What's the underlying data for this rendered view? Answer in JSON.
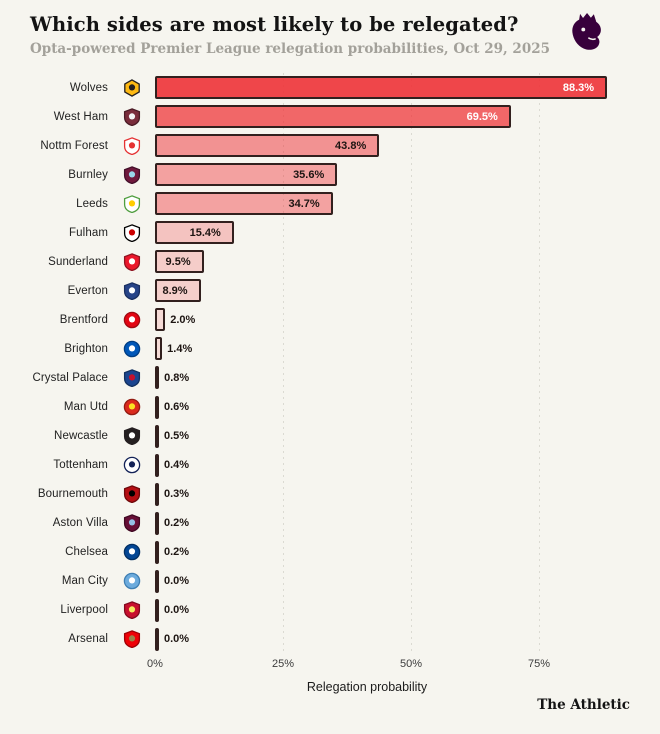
{
  "header": {
    "title": "Which sides are most likely to be relegated?",
    "subtitle": "Opta-powered Premier League relegation probabilities, Oct 29, 2025",
    "logo_color": "#38003c"
  },
  "footer": {
    "brand": "The Athletic"
  },
  "chart_data": {
    "type": "bar",
    "orientation": "horizontal",
    "title": "Which sides are most likely to be relegated?",
    "subtitle": "Opta-powered Premier League relegation probabilities, Oct 29, 2025",
    "xlabel": "Relegation probability",
    "ylabel": "",
    "xlim": [
      0,
      98.6
    ],
    "grid": "dotted-vertical",
    "grid_values": [
      25,
      50,
      75
    ],
    "legend": "none",
    "bar_base_color": "#ee3237",
    "bar_border_color": "#32201e",
    "x_ticks": [
      {
        "label": "0%",
        "value": 0
      },
      {
        "label": "25%",
        "value": 25
      },
      {
        "label": "50%",
        "value": 50
      },
      {
        "label": "75%",
        "value": 75
      }
    ],
    "categories": [
      "Wolves",
      "West Ham",
      "Nottm Forest",
      "Burnley",
      "Leeds",
      "Fulham",
      "Sunderland",
      "Everton",
      "Brentford",
      "Brighton",
      "Crystal Palace",
      "Man Utd",
      "Newcastle",
      "Tottenham",
      "Bournemouth",
      "Aston Villa",
      "Chelsea",
      "Man City",
      "Liverpool",
      "Arsenal"
    ],
    "values": [
      88.3,
      69.5,
      43.8,
      35.6,
      34.7,
      15.4,
      9.5,
      8.9,
      2.0,
      1.4,
      0.8,
      0.6,
      0.5,
      0.4,
      0.3,
      0.2,
      0.2,
      0.0,
      0.0,
      0.0
    ],
    "teams": [
      {
        "name": "Wolves",
        "value": 88.3,
        "label": "88.3%",
        "crest": {
          "shape": "hex",
          "primary": "#FDB913",
          "secondary": "#231F20",
          "stroke": "#231F20"
        }
      },
      {
        "name": "West Ham",
        "value": 69.5,
        "label": "69.5%",
        "crest": {
          "shape": "shield",
          "primary": "#7A2C3B",
          "secondary": "#F3F3F3",
          "stroke": "#4a1b25"
        }
      },
      {
        "name": "Nottm Forest",
        "value": 43.8,
        "label": "43.8%",
        "crest": {
          "shape": "shield",
          "primary": "#FFFFFF",
          "secondary": "#E53233",
          "stroke": "#E53233"
        }
      },
      {
        "name": "Burnley",
        "value": 35.6,
        "label": "35.6%",
        "crest": {
          "shape": "shield",
          "primary": "#70193D",
          "secondary": "#99D6EA",
          "stroke": "#43102a"
        }
      },
      {
        "name": "Leeds",
        "value": 34.7,
        "label": "34.7%",
        "crest": {
          "shape": "shield",
          "primary": "#FFFFFF",
          "secondary": "#FFCD00",
          "stroke": "#4f9e3f"
        }
      },
      {
        "name": "Fulham",
        "value": 15.4,
        "label": "15.4%",
        "crest": {
          "shape": "shield",
          "primary": "#FFFFFF",
          "secondary": "#CC0000",
          "stroke": "#000000"
        }
      },
      {
        "name": "Sunderland",
        "value": 9.5,
        "label": "9.5%",
        "crest": {
          "shape": "shield",
          "primary": "#EB172B",
          "secondary": "#FFFFFF",
          "stroke": "#8f1320"
        }
      },
      {
        "name": "Everton",
        "value": 8.9,
        "label": "8.9%",
        "crest": {
          "shape": "shield",
          "primary": "#274488",
          "secondary": "#FFFFFF",
          "stroke": "#1a2f60"
        }
      },
      {
        "name": "Brentford",
        "value": 2.0,
        "label": "2.0%",
        "crest": {
          "shape": "circle",
          "primary": "#E30613",
          "secondary": "#FFFFFF",
          "stroke": "#9e0a12"
        }
      },
      {
        "name": "Brighton",
        "value": 1.4,
        "label": "1.4%",
        "crest": {
          "shape": "circle",
          "primary": "#0057B8",
          "secondary": "#FFFFFF",
          "stroke": "#003d82"
        }
      },
      {
        "name": "Crystal Palace",
        "value": 0.8,
        "label": "0.8%",
        "crest": {
          "shape": "shield",
          "primary": "#1B458F",
          "secondary": "#C4122E",
          "stroke": "#12305f"
        }
      },
      {
        "name": "Man Utd",
        "value": 0.6,
        "label": "0.6%",
        "crest": {
          "shape": "circle",
          "primary": "#DA291C",
          "secondary": "#FBE122",
          "stroke": "#931b12"
        }
      },
      {
        "name": "Newcastle",
        "value": 0.5,
        "label": "0.5%",
        "crest": {
          "shape": "shield",
          "primary": "#241F20",
          "secondary": "#FFFFFF",
          "stroke": "#241F20"
        }
      },
      {
        "name": "Tottenham",
        "value": 0.4,
        "label": "0.4%",
        "crest": {
          "shape": "circle",
          "primary": "#FFFFFF",
          "secondary": "#132257",
          "stroke": "#132257"
        }
      },
      {
        "name": "Bournemouth",
        "value": 0.3,
        "label": "0.3%",
        "crest": {
          "shape": "shield",
          "primary": "#B50E12",
          "secondary": "#000000",
          "stroke": "#6e090b"
        }
      },
      {
        "name": "Aston Villa",
        "value": 0.2,
        "label": "0.2%",
        "crest": {
          "shape": "shield",
          "primary": "#670E36",
          "secondary": "#95BFE5",
          "stroke": "#400822"
        }
      },
      {
        "name": "Chelsea",
        "value": 0.2,
        "label": "0.2%",
        "crest": {
          "shape": "circle",
          "primary": "#034694",
          "secondary": "#FFFFFF",
          "stroke": "#022f63"
        }
      },
      {
        "name": "Man City",
        "value": 0.0,
        "label": "0.0%",
        "crest": {
          "shape": "circle",
          "primary": "#6CABDD",
          "secondary": "#FFFFFF",
          "stroke": "#3f7fb3"
        }
      },
      {
        "name": "Liverpool",
        "value": 0.0,
        "label": "0.0%",
        "crest": {
          "shape": "shield",
          "primary": "#C8102E",
          "secondary": "#F6EB61",
          "stroke": "#820a1e"
        }
      },
      {
        "name": "Arsenal",
        "value": 0.0,
        "label": "0.0%",
        "crest": {
          "shape": "shield",
          "primary": "#EF0107",
          "secondary": "#9C824A",
          "stroke": "#9e0105"
        }
      }
    ]
  }
}
